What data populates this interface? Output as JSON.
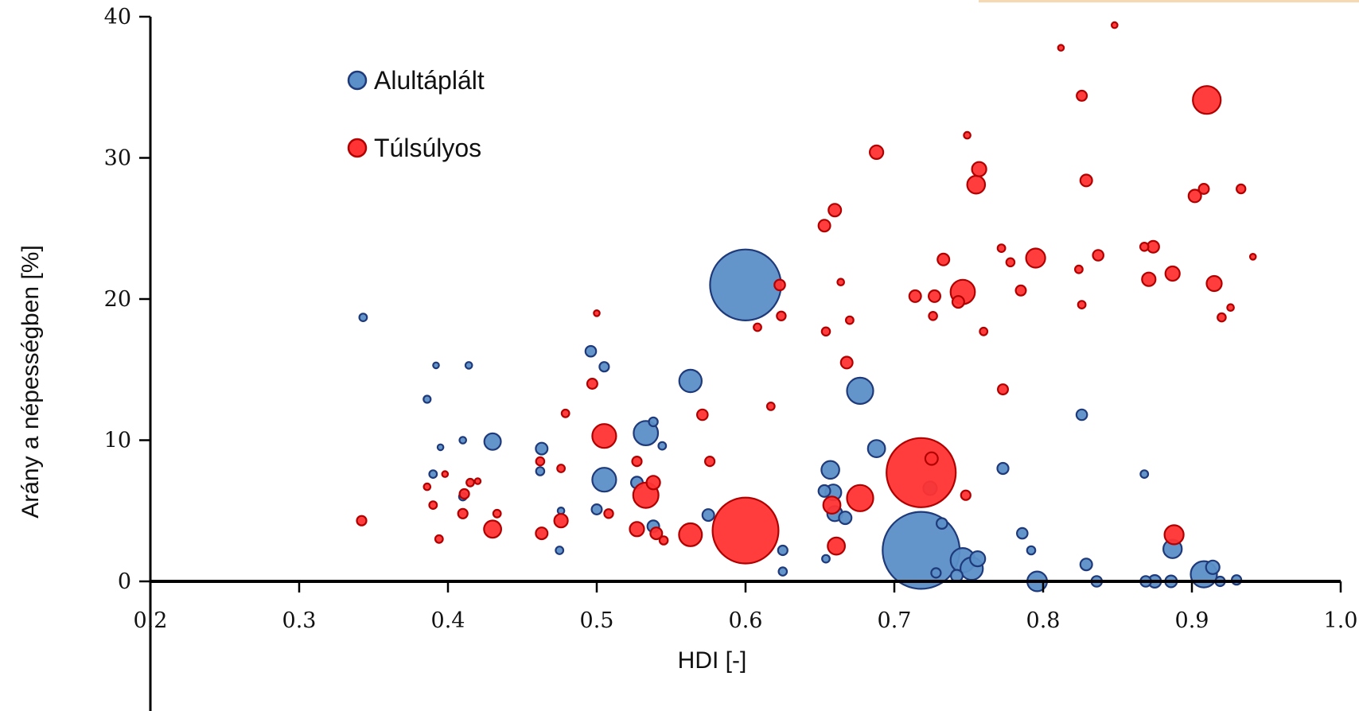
{
  "chart_data": {
    "type": "scatter",
    "subtype": "bubble",
    "xlabel": "HDI [-]",
    "ylabel": "Arány a népességben [%]",
    "xlim": [
      0.2,
      1.0
    ],
    "ylim": [
      0,
      40
    ],
    "x_ticks": [
      "0.2",
      "0.3",
      "0.4",
      "0.5",
      "0.6",
      "0.7",
      "0.8",
      "0.9",
      "1.0"
    ],
    "y_ticks": [
      "0",
      "10",
      "20",
      "30",
      "40"
    ],
    "grid": false,
    "legend_position": "top-left",
    "series": [
      {
        "name": "Alultáplált",
        "color": "#5b8fc7",
        "edge_color": "#1f3a7a",
        "points": [
          {
            "x": 0.343,
            "y": 18.7,
            "s": 0.25
          },
          {
            "x": 0.386,
            "y": 12.9,
            "s": 0.22
          },
          {
            "x": 0.39,
            "y": 7.6,
            "s": 0.25
          },
          {
            "x": 0.395,
            "y": 9.5,
            "s": 0.15
          },
          {
            "x": 0.392,
            "y": 15.3,
            "s": 0.15
          },
          {
            "x": 0.414,
            "y": 15.3,
            "s": 0.2
          },
          {
            "x": 0.41,
            "y": 10.0,
            "s": 0.2
          },
          {
            "x": 0.41,
            "y": 6.0,
            "s": 0.25
          },
          {
            "x": 0.43,
            "y": 9.9,
            "s": 1.2
          },
          {
            "x": 0.463,
            "y": 9.4,
            "s": 0.6
          },
          {
            "x": 0.462,
            "y": 7.8,
            "s": 0.3
          },
          {
            "x": 0.476,
            "y": 5.0,
            "s": 0.2
          },
          {
            "x": 0.475,
            "y": 2.2,
            "s": 0.25
          },
          {
            "x": 0.496,
            "y": 16.3,
            "s": 0.5
          },
          {
            "x": 0.505,
            "y": 15.2,
            "s": 0.4
          },
          {
            "x": 0.5,
            "y": 5.1,
            "s": 0.45
          },
          {
            "x": 0.505,
            "y": 7.2,
            "s": 2.5
          },
          {
            "x": 0.527,
            "y": 7.0,
            "s": 0.6
          },
          {
            "x": 0.533,
            "y": 10.5,
            "s": 2.6
          },
          {
            "x": 0.538,
            "y": 11.3,
            "s": 0.35
          },
          {
            "x": 0.538,
            "y": 3.9,
            "s": 0.6
          },
          {
            "x": 0.544,
            "y": 9.6,
            "s": 0.25
          },
          {
            "x": 0.563,
            "y": 14.2,
            "s": 2.2
          },
          {
            "x": 0.575,
            "y": 4.7,
            "s": 0.6
          },
          {
            "x": 0.6,
            "y": 21.0,
            "s": 22
          },
          {
            "x": 0.625,
            "y": 2.2,
            "s": 0.4
          },
          {
            "x": 0.625,
            "y": 0.7,
            "s": 0.3
          },
          {
            "x": 0.653,
            "y": 6.4,
            "s": 0.6
          },
          {
            "x": 0.657,
            "y": 7.9,
            "s": 1.4
          },
          {
            "x": 0.659,
            "y": 6.3,
            "s": 1.1
          },
          {
            "x": 0.66,
            "y": 4.8,
            "s": 1.0
          },
          {
            "x": 0.667,
            "y": 4.5,
            "s": 0.7
          },
          {
            "x": 0.654,
            "y": 1.6,
            "s": 0.25
          },
          {
            "x": 0.677,
            "y": 13.5,
            "s": 3.0
          },
          {
            "x": 0.688,
            "y": 9.4,
            "s": 1.3
          },
          {
            "x": 0.718,
            "y": 2.2,
            "s": 26
          },
          {
            "x": 0.724,
            "y": 6.6,
            "s": 0.8
          },
          {
            "x": 0.732,
            "y": 4.1,
            "s": 0.5
          },
          {
            "x": 0.728,
            "y": 0.6,
            "s": 0.4
          },
          {
            "x": 0.746,
            "y": 1.5,
            "s": 2.6
          },
          {
            "x": 0.742,
            "y": 0.4,
            "s": 0.6
          },
          {
            "x": 0.752,
            "y": 0.9,
            "s": 2.2
          },
          {
            "x": 0.756,
            "y": 1.6,
            "s": 1.0
          },
          {
            "x": 0.773,
            "y": 8.0,
            "s": 0.55
          },
          {
            "x": 0.786,
            "y": 3.4,
            "s": 0.5
          },
          {
            "x": 0.792,
            "y": 2.2,
            "s": 0.3
          },
          {
            "x": 0.796,
            "y": 0.0,
            "s": 1.7
          },
          {
            "x": 0.826,
            "y": 11.8,
            "s": 0.5
          },
          {
            "x": 0.829,
            "y": 1.2,
            "s": 0.6
          },
          {
            "x": 0.836,
            "y": 0.0,
            "s": 0.5
          },
          {
            "x": 0.868,
            "y": 7.6,
            "s": 0.25
          },
          {
            "x": 0.869,
            "y": 0.0,
            "s": 0.5
          },
          {
            "x": 0.875,
            "y": 0.0,
            "s": 0.7
          },
          {
            "x": 0.887,
            "y": 2.3,
            "s": 1.5
          },
          {
            "x": 0.886,
            "y": 0.0,
            "s": 0.6
          },
          {
            "x": 0.908,
            "y": 0.5,
            "s": 3.0
          },
          {
            "x": 0.914,
            "y": 1.0,
            "s": 0.8
          },
          {
            "x": 0.919,
            "y": 0.0,
            "s": 0.4
          },
          {
            "x": 0.93,
            "y": 0.1,
            "s": 0.4
          }
        ]
      },
      {
        "name": "Túlsúlyos",
        "color": "#ff3333",
        "edge_color": "#b20000",
        "points": [
          {
            "x": 0.342,
            "y": 4.3,
            "s": 0.4
          },
          {
            "x": 0.386,
            "y": 6.7,
            "s": 0.2
          },
          {
            "x": 0.39,
            "y": 5.4,
            "s": 0.25
          },
          {
            "x": 0.394,
            "y": 3.0,
            "s": 0.25
          },
          {
            "x": 0.398,
            "y": 7.6,
            "s": 0.15
          },
          {
            "x": 0.41,
            "y": 4.8,
            "s": 0.4
          },
          {
            "x": 0.411,
            "y": 6.2,
            "s": 0.4
          },
          {
            "x": 0.415,
            "y": 7.0,
            "s": 0.25
          },
          {
            "x": 0.42,
            "y": 7.1,
            "s": 0.15
          },
          {
            "x": 0.43,
            "y": 3.7,
            "s": 1.3
          },
          {
            "x": 0.433,
            "y": 4.8,
            "s": 0.25
          },
          {
            "x": 0.462,
            "y": 8.5,
            "s": 0.3
          },
          {
            "x": 0.463,
            "y": 3.4,
            "s": 0.6
          },
          {
            "x": 0.476,
            "y": 4.3,
            "s": 0.8
          },
          {
            "x": 0.479,
            "y": 11.9,
            "s": 0.25
          },
          {
            "x": 0.476,
            "y": 8.0,
            "s": 0.25
          },
          {
            "x": 0.497,
            "y": 14.0,
            "s": 0.45
          },
          {
            "x": 0.5,
            "y": 19.0,
            "s": 0.15
          },
          {
            "x": 0.505,
            "y": 10.3,
            "s": 2.5
          },
          {
            "x": 0.508,
            "y": 4.8,
            "s": 0.35
          },
          {
            "x": 0.527,
            "y": 3.7,
            "s": 0.9
          },
          {
            "x": 0.527,
            "y": 8.5,
            "s": 0.4
          },
          {
            "x": 0.533,
            "y": 6.1,
            "s": 2.8
          },
          {
            "x": 0.538,
            "y": 7.0,
            "s": 0.8
          },
          {
            "x": 0.54,
            "y": 3.4,
            "s": 0.6
          },
          {
            "x": 0.545,
            "y": 2.9,
            "s": 0.3
          },
          {
            "x": 0.563,
            "y": 3.3,
            "s": 2.3
          },
          {
            "x": 0.571,
            "y": 11.8,
            "s": 0.5
          },
          {
            "x": 0.576,
            "y": 8.5,
            "s": 0.4
          },
          {
            "x": 0.6,
            "y": 3.6,
            "s": 19
          },
          {
            "x": 0.608,
            "y": 18.0,
            "s": 0.25
          },
          {
            "x": 0.617,
            "y": 12.4,
            "s": 0.25
          },
          {
            "x": 0.623,
            "y": 21.0,
            "s": 0.5
          },
          {
            "x": 0.624,
            "y": 18.8,
            "s": 0.35
          },
          {
            "x": 0.653,
            "y": 25.2,
            "s": 0.6
          },
          {
            "x": 0.654,
            "y": 17.7,
            "s": 0.3
          },
          {
            "x": 0.66,
            "y": 26.3,
            "s": 0.7
          },
          {
            "x": 0.658,
            "y": 5.4,
            "s": 1.3
          },
          {
            "x": 0.661,
            "y": 2.5,
            "s": 1.3
          },
          {
            "x": 0.664,
            "y": 21.2,
            "s": 0.2
          },
          {
            "x": 0.668,
            "y": 15.5,
            "s": 0.6
          },
          {
            "x": 0.677,
            "y": 5.9,
            "s": 3.0
          },
          {
            "x": 0.67,
            "y": 18.5,
            "s": 0.25
          },
          {
            "x": 0.688,
            "y": 30.4,
            "s": 0.8
          },
          {
            "x": 0.718,
            "y": 7.7,
            "s": 21
          },
          {
            "x": 0.714,
            "y": 20.2,
            "s": 0.6
          },
          {
            "x": 0.727,
            "y": 20.2,
            "s": 0.6
          },
          {
            "x": 0.725,
            "y": 8.7,
            "s": 0.7
          },
          {
            "x": 0.726,
            "y": 18.8,
            "s": 0.3
          },
          {
            "x": 0.733,
            "y": 22.8,
            "s": 0.6
          },
          {
            "x": 0.746,
            "y": 20.5,
            "s": 2.6
          },
          {
            "x": 0.743,
            "y": 19.8,
            "s": 0.6
          },
          {
            "x": 0.748,
            "y": 6.1,
            "s": 0.4
          },
          {
            "x": 0.749,
            "y": 31.6,
            "s": 0.2
          },
          {
            "x": 0.755,
            "y": 28.1,
            "s": 1.4
          },
          {
            "x": 0.757,
            "y": 29.2,
            "s": 0.9
          },
          {
            "x": 0.76,
            "y": 17.7,
            "s": 0.25
          },
          {
            "x": 0.772,
            "y": 23.6,
            "s": 0.25
          },
          {
            "x": 0.773,
            "y": 13.6,
            "s": 0.45
          },
          {
            "x": 0.778,
            "y": 22.6,
            "s": 0.3
          },
          {
            "x": 0.785,
            "y": 20.6,
            "s": 0.45
          },
          {
            "x": 0.795,
            "y": 22.9,
            "s": 1.6
          },
          {
            "x": 0.812,
            "y": 37.8,
            "s": 0.15
          },
          {
            "x": 0.824,
            "y": 22.1,
            "s": 0.25
          },
          {
            "x": 0.826,
            "y": 34.4,
            "s": 0.45
          },
          {
            "x": 0.829,
            "y": 28.4,
            "s": 0.6
          },
          {
            "x": 0.826,
            "y": 19.6,
            "s": 0.25
          },
          {
            "x": 0.837,
            "y": 23.1,
            "s": 0.5
          },
          {
            "x": 0.848,
            "y": 39.4,
            "s": 0.15
          },
          {
            "x": 0.868,
            "y": 23.7,
            "s": 0.3
          },
          {
            "x": 0.871,
            "y": 21.4,
            "s": 0.8
          },
          {
            "x": 0.874,
            "y": 23.7,
            "s": 0.6
          },
          {
            "x": 0.887,
            "y": 21.8,
            "s": 0.9
          },
          {
            "x": 0.888,
            "y": 3.3,
            "s": 1.6
          },
          {
            "x": 0.902,
            "y": 27.3,
            "s": 0.7
          },
          {
            "x": 0.908,
            "y": 27.8,
            "s": 0.45
          },
          {
            "x": 0.91,
            "y": 34.1,
            "s": 3.4
          },
          {
            "x": 0.915,
            "y": 21.1,
            "s": 1.0
          },
          {
            "x": 0.92,
            "y": 18.7,
            "s": 0.3
          },
          {
            "x": 0.926,
            "y": 19.4,
            "s": 0.2
          },
          {
            "x": 0.933,
            "y": 27.8,
            "s": 0.35
          },
          {
            "x": 0.941,
            "y": 23.0,
            "s": 0.15
          }
        ]
      }
    ]
  }
}
